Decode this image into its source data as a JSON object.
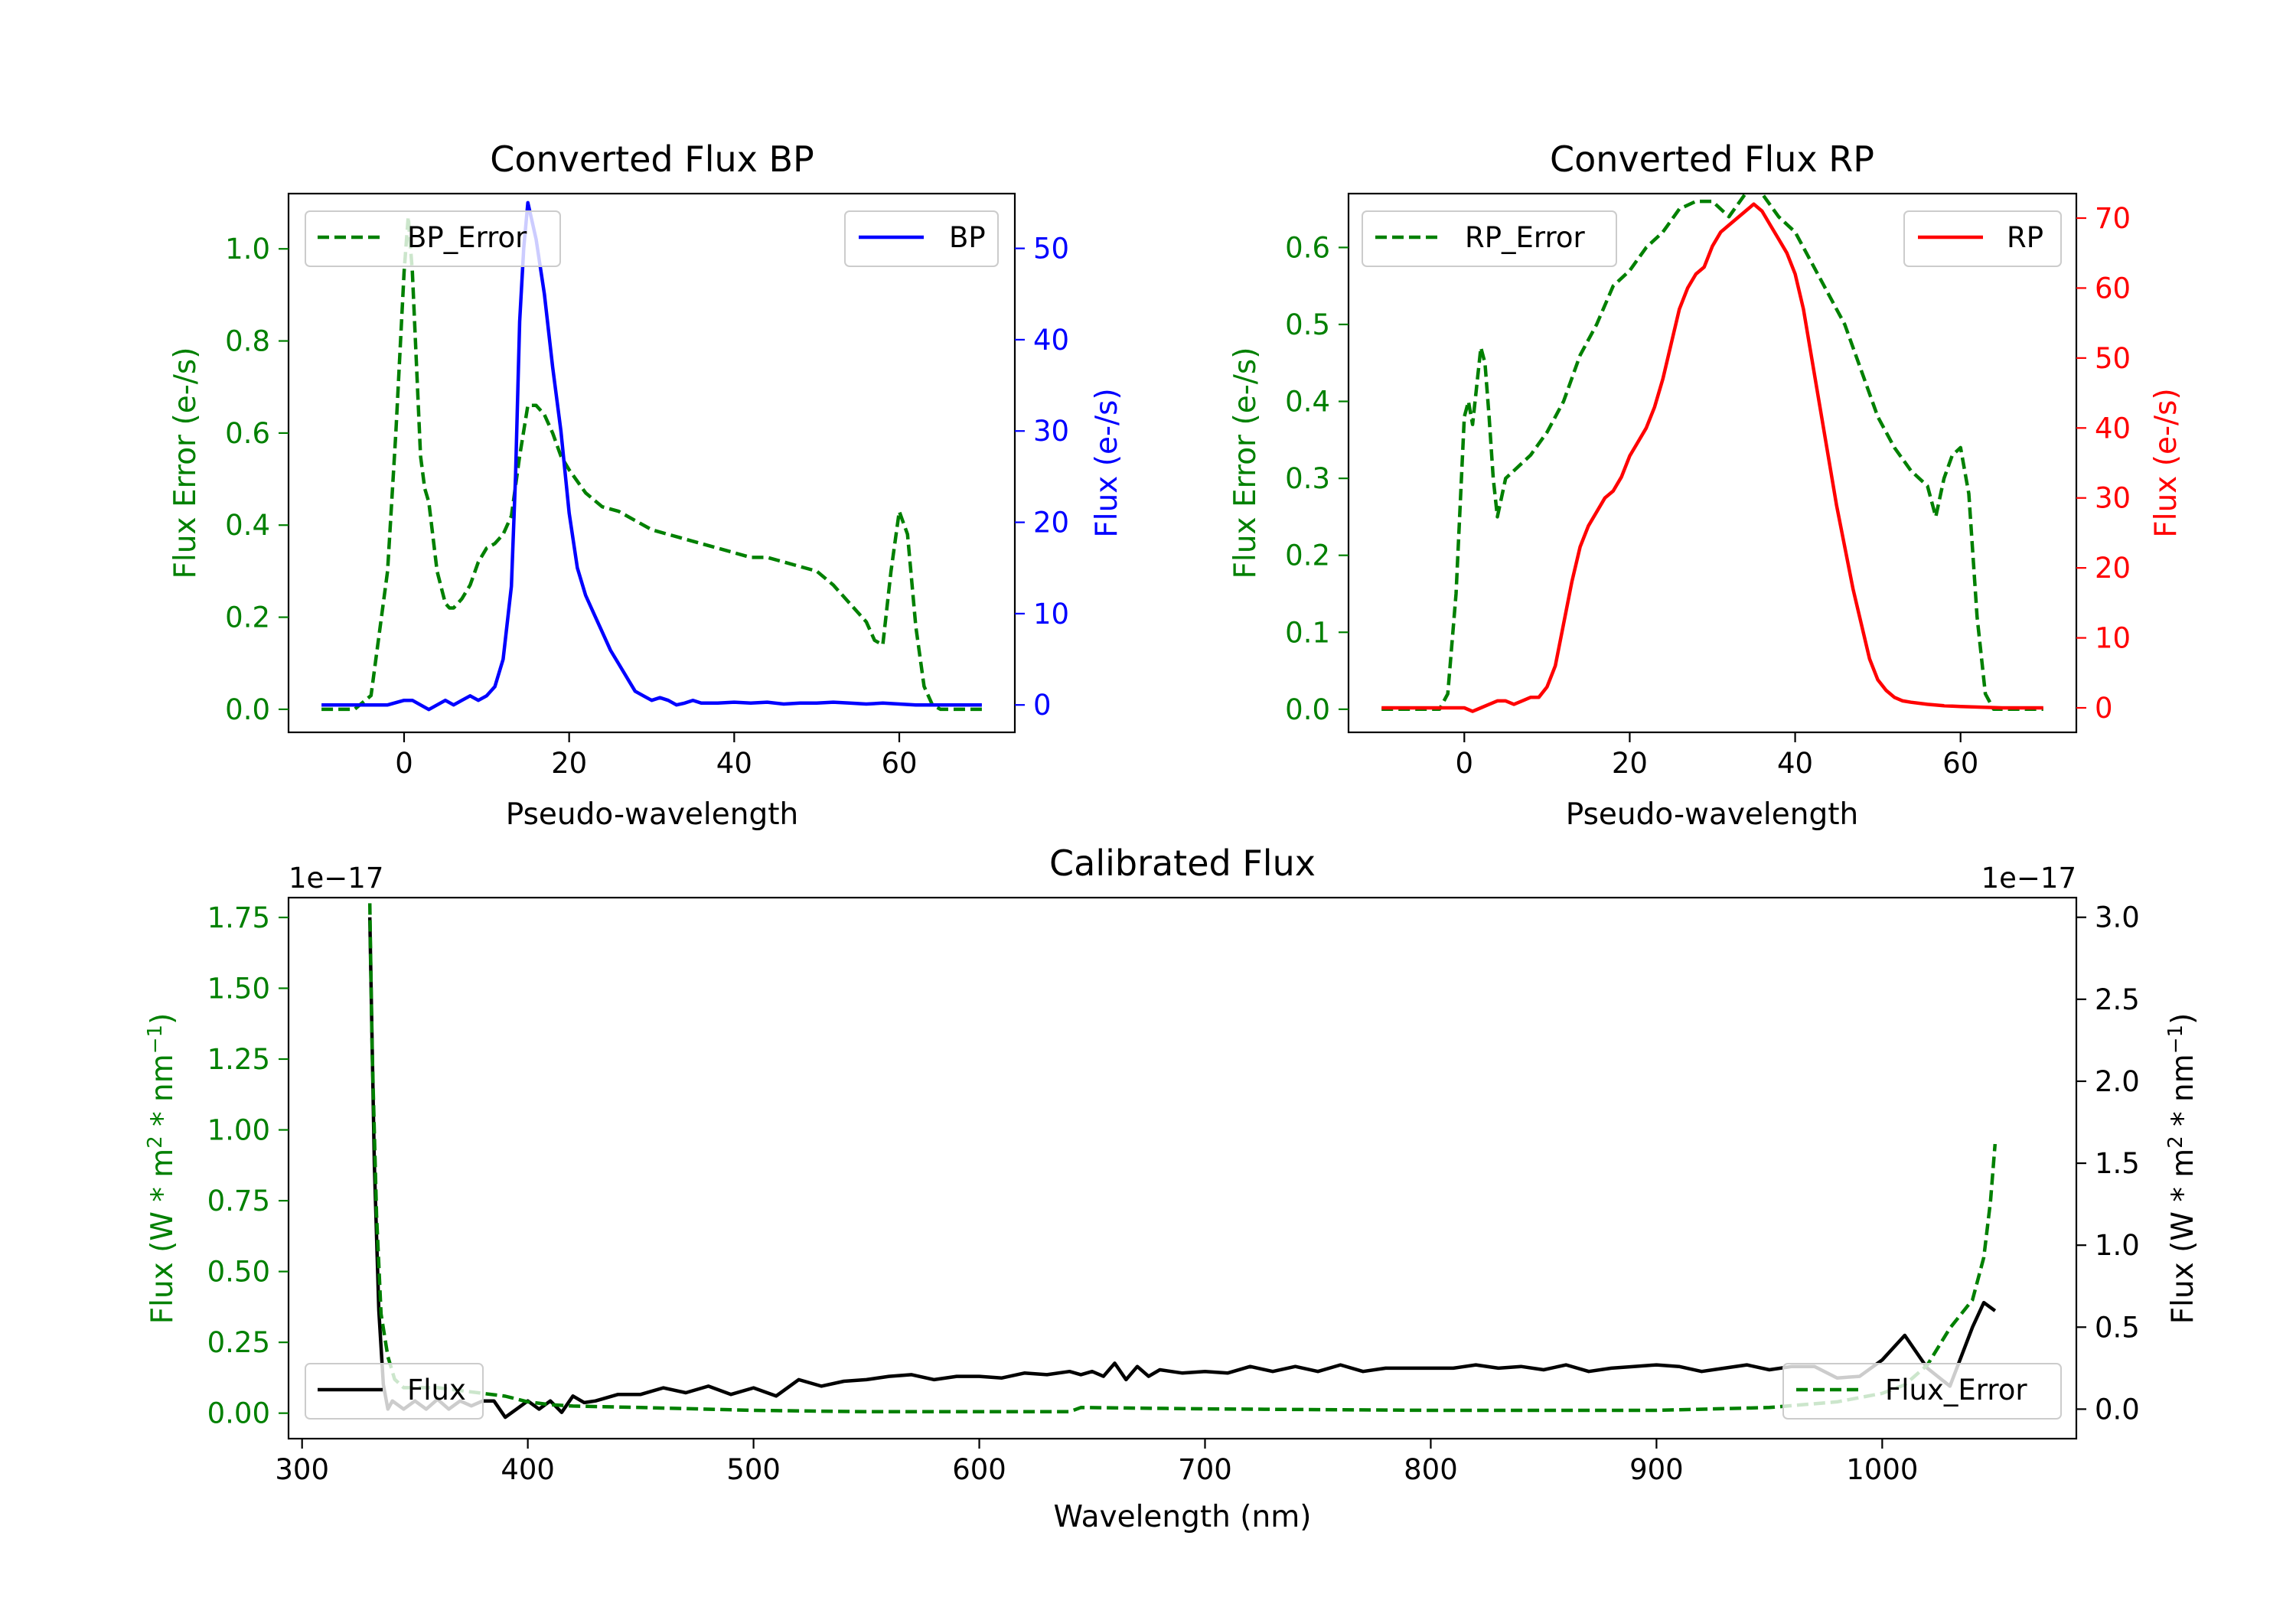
{
  "figure": {
    "background": "#ffffff"
  },
  "colors": {
    "green": "#008000",
    "blue": "#0000ff",
    "red": "#ff0000",
    "black": "#000000"
  },
  "chart_data": [
    {
      "id": "bp",
      "type": "line",
      "title": "Converted Flux BP",
      "xlabel": "Pseudo-wavelength",
      "ylabel_left": "Flux Error (e-/s)",
      "ylabel_right": "Flux (e-/s)",
      "xlim": [
        -14,
        74
      ],
      "ylim_left": [
        -0.05,
        1.12
      ],
      "ylim_right": [
        -3,
        56
      ],
      "xticks": [
        0,
        20,
        40,
        60
      ],
      "xtick_labels": [
        "0",
        "20",
        "40",
        "60"
      ],
      "yticks_left": [
        0.0,
        0.2,
        0.4,
        0.6,
        0.8,
        1.0
      ],
      "ytick_labels_left": [
        "0.0",
        "0.2",
        "0.4",
        "0.6",
        "0.8",
        "1.0"
      ],
      "yticks_right": [
        0,
        10,
        20,
        30,
        40,
        50
      ],
      "ytick_labels_right": [
        "0",
        "10",
        "20",
        "30",
        "40",
        "50"
      ],
      "color_left": "#008000",
      "color_right": "#0000ff",
      "series": [
        {
          "name": "BP_Error",
          "axis": "left",
          "style": "dashed",
          "color": "#008000",
          "legend_pos": "upper-left",
          "x": [
            -10,
            -6,
            -4,
            -2,
            -1,
            0,
            0.5,
            1,
            2,
            2.5,
            3,
            4,
            5,
            5.5,
            6,
            7,
            8,
            9,
            10,
            11,
            12,
            13,
            14,
            15,
            16,
            17,
            18,
            19,
            20,
            22,
            24,
            26,
            28,
            30,
            32,
            34,
            36,
            38,
            40,
            42,
            44,
            46,
            48,
            50,
            52,
            54,
            56,
            57,
            58,
            59,
            60,
            61,
            62,
            63,
            64,
            65,
            70
          ],
          "y": [
            0.0,
            0.0,
            0.03,
            0.3,
            0.6,
            0.95,
            1.07,
            0.95,
            0.55,
            0.48,
            0.45,
            0.3,
            0.23,
            0.22,
            0.22,
            0.24,
            0.27,
            0.32,
            0.35,
            0.36,
            0.38,
            0.42,
            0.55,
            0.66,
            0.66,
            0.64,
            0.6,
            0.55,
            0.52,
            0.47,
            0.44,
            0.43,
            0.41,
            0.39,
            0.38,
            0.37,
            0.36,
            0.35,
            0.34,
            0.33,
            0.33,
            0.32,
            0.31,
            0.3,
            0.27,
            0.23,
            0.19,
            0.15,
            0.14,
            0.3,
            0.43,
            0.38,
            0.18,
            0.05,
            0.01,
            0.0,
            0.0
          ]
        },
        {
          "name": "BP",
          "axis": "right",
          "style": "solid",
          "color": "#0000ff",
          "legend_pos": "upper-right",
          "x": [
            -10,
            -5,
            -2,
            0,
            1,
            2,
            3,
            4,
            5,
            6,
            7,
            8,
            9,
            10,
            11,
            12,
            13,
            13.5,
            14,
            14.5,
            15,
            15.5,
            16,
            17,
            18,
            19,
            20,
            21,
            22,
            23,
            24,
            25,
            26,
            27,
            28,
            29,
            30,
            31,
            32,
            33,
            34,
            35,
            36,
            38,
            40,
            42,
            44,
            46,
            48,
            50,
            52,
            54,
            56,
            58,
            60,
            62,
            65,
            70
          ],
          "y": [
            0,
            0,
            0,
            0.5,
            0.5,
            0,
            -0.5,
            0,
            0.5,
            0,
            0.5,
            1,
            0.5,
            1,
            2,
            5,
            13,
            25,
            42,
            50,
            55,
            53,
            51,
            45,
            37,
            30,
            21,
            15,
            12,
            10,
            8,
            6,
            4.5,
            3,
            1.5,
            1,
            0.5,
            0.8,
            0.5,
            0,
            0.2,
            0.5,
            0.2,
            0.2,
            0.3,
            0.2,
            0.3,
            0.1,
            0.2,
            0.2,
            0.3,
            0.2,
            0.1,
            0.2,
            0.1,
            0,
            0,
            0
          ]
        }
      ]
    },
    {
      "id": "rp",
      "type": "line",
      "title": "Converted Flux RP",
      "xlabel": "Pseudo-wavelength",
      "ylabel_left": "Flux Error (e-/s)",
      "ylabel_right": "Flux (e-/s)",
      "xlim": [
        -14,
        74
      ],
      "ylim_left": [
        -0.03,
        0.67
      ],
      "ylim_right": [
        -3.5,
        73.5
      ],
      "xticks": [
        0,
        20,
        40,
        60
      ],
      "xtick_labels": [
        "0",
        "20",
        "40",
        "60"
      ],
      "yticks_left": [
        0.0,
        0.1,
        0.2,
        0.3,
        0.4,
        0.5,
        0.6
      ],
      "ytick_labels_left": [
        "0.0",
        "0.1",
        "0.2",
        "0.3",
        "0.4",
        "0.5",
        "0.6"
      ],
      "yticks_right": [
        0,
        10,
        20,
        30,
        40,
        50,
        60,
        70
      ],
      "ytick_labels_right": [
        "0",
        "10",
        "20",
        "30",
        "40",
        "50",
        "60",
        "70"
      ],
      "color_left": "#008000",
      "color_right": "#ff0000",
      "series": [
        {
          "name": "RP_Error",
          "axis": "left",
          "style": "dashed",
          "color": "#008000",
          "legend_pos": "upper-left",
          "x": [
            -10,
            -5,
            -3,
            -2,
            -1,
            0,
            0.5,
            1,
            1.5,
            2,
            2.5,
            3,
            3.5,
            4,
            5,
            6,
            7,
            8,
            10,
            12,
            14,
            16,
            18,
            20,
            22,
            24,
            26,
            28,
            30,
            32,
            34,
            35,
            36,
            38,
            40,
            42,
            44,
            46,
            48,
            50,
            52,
            54,
            56,
            57,
            58,
            59,
            60,
            61,
            62,
            63,
            64,
            65,
            70
          ],
          "y": [
            0.0,
            0.0,
            0.0,
            0.02,
            0.15,
            0.38,
            0.4,
            0.37,
            0.42,
            0.47,
            0.45,
            0.38,
            0.3,
            0.25,
            0.3,
            0.31,
            0.32,
            0.33,
            0.36,
            0.4,
            0.46,
            0.5,
            0.55,
            0.57,
            0.6,
            0.62,
            0.65,
            0.66,
            0.66,
            0.64,
            0.67,
            0.69,
            0.67,
            0.64,
            0.62,
            0.58,
            0.54,
            0.5,
            0.44,
            0.38,
            0.34,
            0.31,
            0.29,
            0.25,
            0.3,
            0.33,
            0.34,
            0.28,
            0.12,
            0.02,
            0.0,
            0.0,
            0.0
          ]
        },
        {
          "name": "RP",
          "axis": "right",
          "style": "solid",
          "color": "#ff0000",
          "legend_pos": "upper-right",
          "x": [
            -10,
            -4,
            0,
            1,
            2,
            3,
            4,
            5,
            6,
            7,
            8,
            9,
            10,
            11,
            12,
            13,
            14,
            15,
            16,
            17,
            18,
            19,
            20,
            21,
            22,
            23,
            24,
            25,
            26,
            27,
            28,
            29,
            30,
            31,
            32,
            33,
            34,
            35,
            36,
            37,
            38,
            39,
            40,
            41,
            42,
            43,
            44,
            45,
            46,
            47,
            48,
            49,
            50,
            51,
            52,
            53,
            54,
            56,
            58,
            60,
            65,
            70
          ],
          "y": [
            0,
            0,
            0,
            -0.5,
            0,
            0.5,
            1,
            1,
            0.5,
            1,
            1.5,
            1.5,
            3,
            6,
            12,
            18,
            23,
            26,
            28,
            30,
            31,
            33,
            36,
            38,
            40,
            43,
            47,
            52,
            57,
            60,
            62,
            63,
            66,
            68,
            69,
            70,
            71,
            72,
            71,
            69,
            67,
            65,
            62,
            57,
            50,
            43,
            36,
            29,
            23,
            17,
            12,
            7,
            4,
            2.5,
            1.5,
            1,
            0.8,
            0.5,
            0.3,
            0.2,
            0,
            0
          ]
        }
      ]
    },
    {
      "id": "calibrated",
      "type": "line",
      "title": "Calibrated Flux",
      "xlabel": "Wavelength (nm)",
      "ylabel_left_parts": [
        "Flux (W * m",
        "2",
        " * nm",
        "−1",
        ")"
      ],
      "ylabel_right_parts": [
        "Flux (W * m",
        "2",
        " * nm",
        "−1",
        ")"
      ],
      "offset_left": "1e−17",
      "offset_right": "1e−17",
      "xlim": [
        294,
        1086
      ],
      "ylim_left": [
        -0.09,
        1.82
      ],
      "ylim_right": [
        -0.18,
        3.12
      ],
      "xticks": [
        300,
        400,
        500,
        600,
        700,
        800,
        900,
        1000
      ],
      "xtick_labels": [
        "300",
        "400",
        "500",
        "600",
        "700",
        "800",
        "900",
        "1000"
      ],
      "yticks_left": [
        0.0,
        0.25,
        0.5,
        0.75,
        1.0,
        1.25,
        1.5,
        1.75
      ],
      "ytick_labels_left": [
        "0.00",
        "0.25",
        "0.50",
        "0.75",
        "1.00",
        "1.25",
        "1.50",
        "1.75"
      ],
      "yticks_right": [
        0.0,
        0.5,
        1.0,
        1.5,
        2.0,
        2.5,
        3.0
      ],
      "ytick_labels_right": [
        "0.0",
        "0.5",
        "1.0",
        "1.5",
        "2.0",
        "2.5",
        "3.0"
      ],
      "color_left": "#008000",
      "color_right": "#000000",
      "series": [
        {
          "name": "Flux",
          "axis": "right",
          "style": "solid",
          "color": "#000000",
          "legend_pos": "lower-left",
          "x": [
            330,
            332,
            334,
            336,
            338,
            340,
            345,
            350,
            355,
            360,
            365,
            370,
            375,
            380,
            385,
            390,
            395,
            400,
            405,
            410,
            415,
            420,
            425,
            430,
            440,
            450,
            460,
            470,
            480,
            490,
            500,
            510,
            520,
            530,
            540,
            550,
            560,
            570,
            580,
            590,
            600,
            610,
            620,
            630,
            640,
            645,
            650,
            655,
            660,
            665,
            670,
            675,
            680,
            690,
            700,
            710,
            720,
            730,
            740,
            750,
            760,
            770,
            780,
            790,
            800,
            810,
            820,
            830,
            840,
            850,
            860,
            870,
            880,
            890,
            900,
            910,
            920,
            930,
            940,
            950,
            960,
            970,
            980,
            990,
            1000,
            1010,
            1020,
            1030,
            1040,
            1045,
            1050
          ],
          "y": [
            3.0,
            1.5,
            0.6,
            0.15,
            0.0,
            0.05,
            0.0,
            0.05,
            0.0,
            0.06,
            0.0,
            0.05,
            0.02,
            0.05,
            0.05,
            -0.05,
            0.0,
            0.05,
            0.0,
            0.05,
            -0.02,
            0.08,
            0.04,
            0.05,
            0.09,
            0.09,
            0.13,
            0.1,
            0.14,
            0.09,
            0.13,
            0.08,
            0.18,
            0.14,
            0.17,
            0.18,
            0.2,
            0.21,
            0.18,
            0.2,
            0.2,
            0.19,
            0.22,
            0.21,
            0.23,
            0.21,
            0.23,
            0.2,
            0.28,
            0.18,
            0.26,
            0.2,
            0.24,
            0.22,
            0.23,
            0.22,
            0.26,
            0.23,
            0.26,
            0.23,
            0.27,
            0.23,
            0.25,
            0.25,
            0.25,
            0.25,
            0.27,
            0.25,
            0.26,
            0.24,
            0.27,
            0.23,
            0.25,
            0.26,
            0.27,
            0.26,
            0.23,
            0.25,
            0.27,
            0.24,
            0.26,
            0.26,
            0.19,
            0.2,
            0.3,
            0.45,
            0.25,
            0.14,
            0.5,
            0.65,
            0.6
          ]
        },
        {
          "name": "Flux_Error",
          "axis": "left",
          "style": "dashed",
          "color": "#008000",
          "legend_pos": "lower-right",
          "x": [
            330,
            331,
            333,
            335,
            338,
            341,
            345,
            350,
            360,
            370,
            380,
            390,
            400,
            410,
            420,
            450,
            500,
            550,
            600,
            640,
            645,
            700,
            800,
            900,
            950,
            980,
            1000,
            1010,
            1020,
            1030,
            1040,
            1045,
            1048,
            1050
          ],
          "y": [
            1.8,
            1.3,
            0.7,
            0.35,
            0.2,
            0.12,
            0.09,
            0.09,
            0.09,
            0.08,
            0.07,
            0.06,
            0.04,
            0.03,
            0.025,
            0.02,
            0.01,
            0.005,
            0.005,
            0.005,
            0.02,
            0.015,
            0.01,
            0.01,
            0.02,
            0.04,
            0.07,
            0.1,
            0.17,
            0.3,
            0.4,
            0.55,
            0.75,
            0.95
          ]
        }
      ]
    }
  ]
}
